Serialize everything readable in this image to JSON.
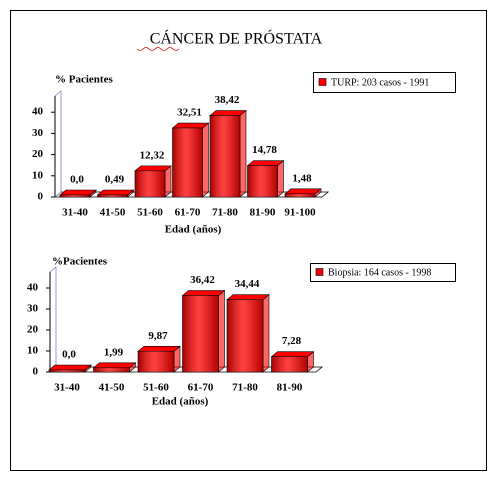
{
  "title": "CÁNCER DE PRÓSTATA",
  "chart_data": [
    {
      "type": "bar3d",
      "y_label": "% Pacientes",
      "x_label": "Edad (años)",
      "categories": [
        "31-40",
        "41-50",
        "51-60",
        "61-70",
        "71-80",
        "81-90",
        "91-100"
      ],
      "series": [
        {
          "name": "TURP: 203 casos - 1991",
          "color": "#ff0000",
          "values": [
            0,
            0.49,
            12.32,
            32.51,
            38.42,
            14.78,
            1.48
          ],
          "value_labels": [
            "0,0",
            "0,49",
            "12,32",
            "32,51",
            "38,42",
            "14,78",
            "1,48"
          ]
        }
      ],
      "ylim": [
        0,
        50
      ],
      "yticks": [
        0,
        10,
        20,
        30,
        40
      ],
      "legend": "top-right"
    },
    {
      "type": "bar3d",
      "y_label": "%Pacientes",
      "x_label": "Edad (años)",
      "categories": [
        "31-40",
        "41-50",
        "51-60",
        "61-70",
        "71-80",
        "81-90"
      ],
      "series": [
        {
          "name": "Biopsia: 164 casos - 1998",
          "color": "#ff0000",
          "values": [
            0,
            1.99,
            9.87,
            36.42,
            34.44,
            7.28
          ],
          "value_labels": [
            "0,0",
            "1,99",
            "9,87",
            "36,42",
            "34,44",
            "7,28"
          ]
        }
      ],
      "ylim": [
        0,
        50
      ],
      "yticks": [
        0,
        10,
        20,
        30,
        40
      ],
      "legend": "top-right"
    }
  ]
}
